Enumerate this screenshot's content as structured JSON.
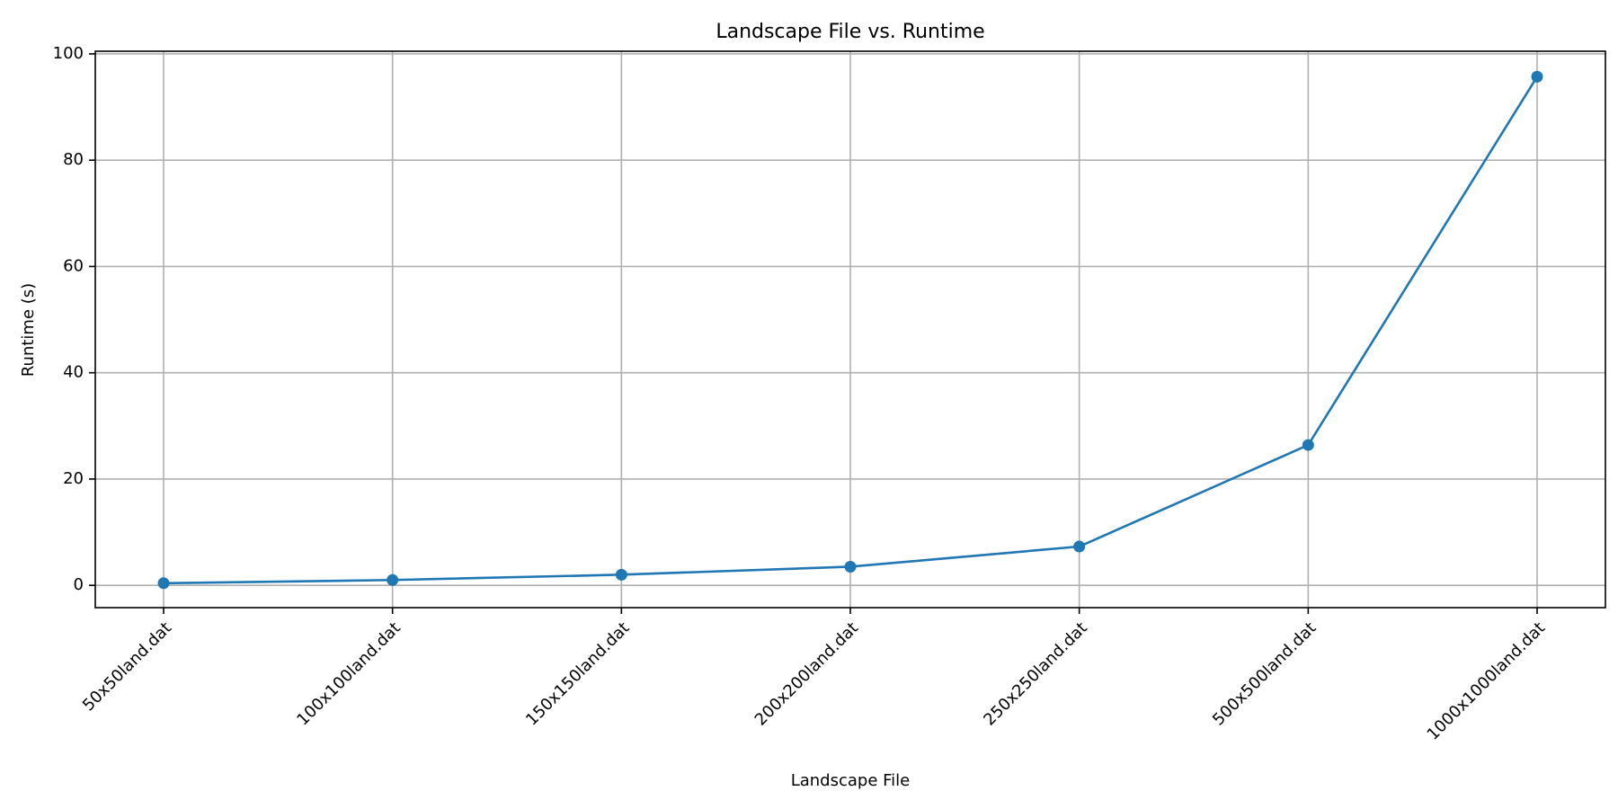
{
  "chart_data": {
    "type": "line",
    "title": "Landscape File vs. Runtime",
    "xlabel": "Landscape File",
    "ylabel": "Runtime (s)",
    "categories": [
      "50x50land.dat",
      "100x100land.dat",
      "150x150land.dat",
      "200x200land.dat",
      "250x250land.dat",
      "500x500land.dat",
      "1000x1000land.dat"
    ],
    "series": [
      {
        "values": [
          0.4,
          1.0,
          2.0,
          3.5,
          7.3,
          26.4,
          95.7
        ],
        "color": "#1f77b4",
        "marker": "circle"
      }
    ],
    "ylim": [
      -4.2,
      100.5
    ],
    "yticks": [
      0,
      20,
      40,
      60,
      80,
      100
    ],
    "grid": true,
    "x_tick_rotation_deg": 45
  }
}
